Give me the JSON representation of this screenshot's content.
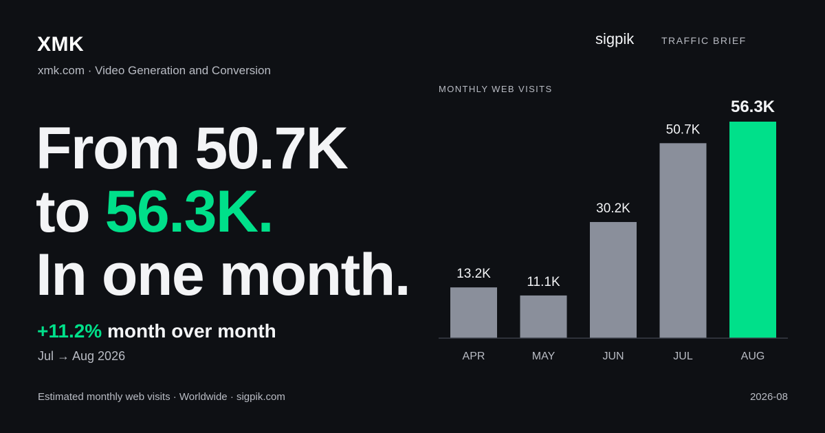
{
  "brand": {
    "name": "XMK",
    "subtitle": "xmk.com · Video Generation and Conversion"
  },
  "headline": {
    "line1": "From 50.7K",
    "line2_prefix": "to ",
    "line2_accent": "56.3K.",
    "line3": "In one month."
  },
  "growth": {
    "percent": "+11.2%",
    "text": " month over month",
    "range": "Jul → Aug 2026"
  },
  "header_right": {
    "logo": "sigpik",
    "label": "TRAFFIC BRIEF"
  },
  "footer": {
    "source": "Estimated monthly web visits · Worldwide · sigpik.com",
    "date": "2026-08"
  },
  "colors": {
    "background": "#0e1014",
    "accent": "#00e08a",
    "bar": "#8a8f9b",
    "text": "#f3f4f6",
    "muted": "#b9bcc4"
  },
  "chart_data": {
    "type": "bar",
    "title": "MONTHLY WEB VISITS",
    "categories": [
      "APR",
      "MAY",
      "JUN",
      "JUL",
      "AUG"
    ],
    "values": [
      13.2,
      11.1,
      30.2,
      50.7,
      56.3
    ],
    "value_labels": [
      "13.2K",
      "11.1K",
      "30.2K",
      "50.7K",
      "56.3K"
    ],
    "unit": "K visits",
    "highlight_index": 4,
    "ylim": [
      0,
      56.3
    ],
    "grid": false,
    "legend": "none"
  }
}
